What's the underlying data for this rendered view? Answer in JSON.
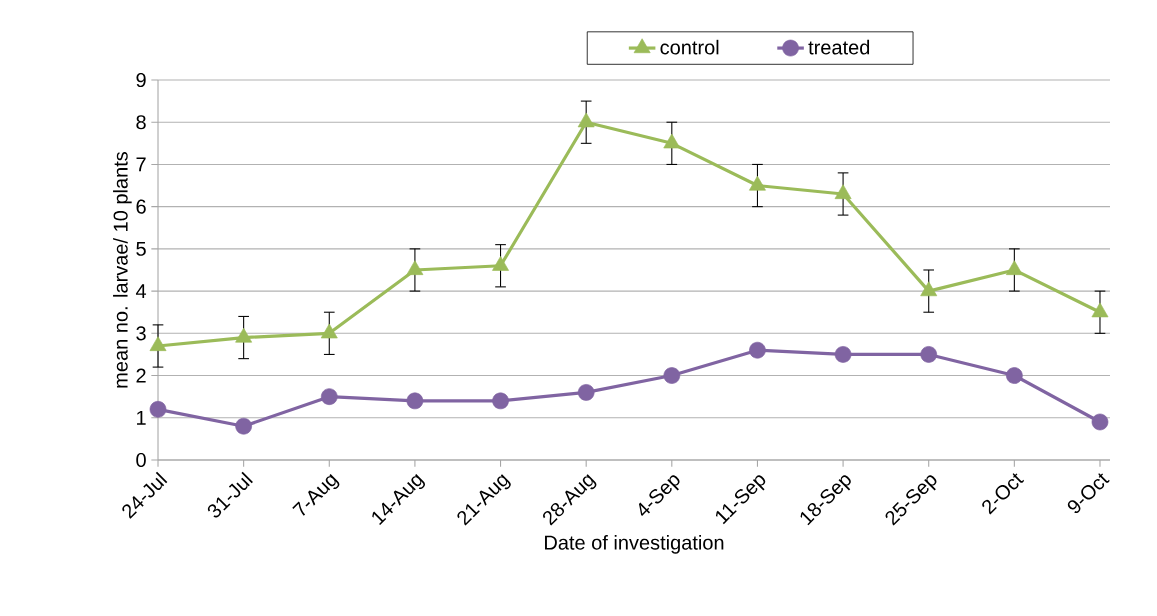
{
  "chart_data": {
    "type": "line",
    "xlabel": "Date of investigation",
    "ylabel": "mean no. larvae/ 10 plants",
    "categories": [
      "24-Jul",
      "31-Jul",
      "7-Aug",
      "14-Aug",
      "21-Aug",
      "28-Aug",
      "4-Sep",
      "11-Sep",
      "18-Sep",
      "25-Sep",
      "2-Oct",
      "9-Oct"
    ],
    "series": [
      {
        "name": "control",
        "color": "#9bbb59",
        "marker": "triangle",
        "values": [
          2.7,
          2.9,
          3.0,
          4.5,
          4.6,
          8.0,
          7.5,
          6.5,
          6.3,
          4.0,
          4.5,
          3.5
        ],
        "errors": [
          0.5,
          0.5,
          0.5,
          0.5,
          0.5,
          0.5,
          0.5,
          0.5,
          0.5,
          0.5,
          0.5,
          0.5
        ]
      },
      {
        "name": "treated",
        "color": "#8064a2",
        "marker": "circle",
        "values": [
          1.2,
          0.8,
          1.5,
          1.4,
          1.4,
          1.6,
          2.0,
          2.6,
          2.5,
          2.5,
          2.0,
          0.9
        ]
      }
    ],
    "ylim": [
      0,
      9
    ],
    "yticks": [
      0,
      1,
      2,
      3,
      4,
      5,
      6,
      7,
      8,
      9
    ],
    "grid": "y",
    "legend": "top",
    "line_style": "solid"
  }
}
